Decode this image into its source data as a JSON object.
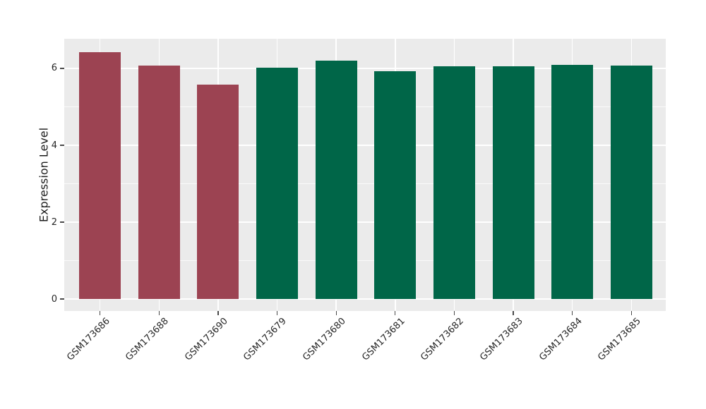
{
  "figure": {
    "background": "#ffffff",
    "plot_background": "#ebebeb",
    "gridline_color": "#ffffff",
    "tick_mark_color": "#4a4a4a",
    "text_color": "#262626"
  },
  "chart_data": {
    "type": "bar",
    "title": "",
    "xlabel": "",
    "ylabel": "Expression Level",
    "categories": [
      "GSM173686",
      "GSM173688",
      "GSM173690",
      "GSM173679",
      "GSM173680",
      "GSM173681",
      "GSM173682",
      "GSM173683",
      "GSM173684",
      "GSM173685"
    ],
    "values": [
      6.43,
      6.08,
      5.57,
      6.01,
      6.21,
      5.92,
      6.06,
      6.06,
      6.09,
      6.07
    ],
    "bar_colors": [
      "#9c4352",
      "#9c4352",
      "#9c4352",
      "#006648",
      "#006648",
      "#006648",
      "#006648",
      "#006648",
      "#006648",
      "#006648"
    ],
    "color_groups": [
      {
        "color": "#9c4352",
        "members": [
          "GSM173686",
          "GSM173688",
          "GSM173690"
        ]
      },
      {
        "color": "#006648",
        "members": [
          "GSM173679",
          "GSM173680",
          "GSM173681",
          "GSM173682",
          "GSM173683",
          "GSM173684",
          "GSM173685"
        ]
      }
    ],
    "yticks": [
      0,
      2,
      4,
      6
    ],
    "yticks_minor": [
      1,
      3,
      5
    ],
    "ylim": [
      -0.31,
      6.77
    ],
    "grid": "major horizontal + minor horizontal + vertical at category centers",
    "legend": null,
    "x_tick_label_rotation_deg": 45
  }
}
